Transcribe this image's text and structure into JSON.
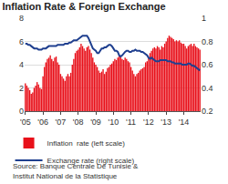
{
  "chart_data": {
    "type": "bar",
    "title": "Inflation Rate & Foreign Exchange",
    "annotations": [
      "Source: Banque Centrale De Tunisie &",
      "Institut National de la Statistique"
    ],
    "categories": [
      "'05",
      null,
      null,
      null,
      null,
      null,
      null,
      null,
      null,
      null,
      null,
      null,
      "'06",
      null,
      null,
      null,
      null,
      null,
      null,
      null,
      null,
      null,
      null,
      null,
      "'07",
      null,
      null,
      null,
      null,
      null,
      null,
      null,
      null,
      null,
      null,
      null,
      "'08",
      null,
      null,
      null,
      null,
      null,
      null,
      null,
      null,
      null,
      null,
      null,
      "'09",
      null,
      null,
      null,
      null,
      null,
      null,
      null,
      null,
      null,
      null,
      null,
      "'10",
      null,
      null,
      null,
      null,
      null,
      null,
      null,
      null,
      null,
      null,
      null,
      "'11",
      null,
      null,
      null,
      null,
      null,
      null,
      null,
      null,
      null,
      null,
      null,
      "'12",
      null,
      null,
      null,
      null,
      null,
      null,
      null,
      null,
      null,
      null,
      null,
      "'13",
      null,
      null,
      null,
      null,
      null,
      null,
      null,
      null,
      null,
      null,
      null,
      "'14",
      null,
      null,
      null,
      null,
      null,
      null,
      null,
      null,
      null,
      null,
      null
    ],
    "series": [
      {
        "name": "Inflation  rate (left scale)",
        "type": "bar",
        "color": "#e8101a",
        "values": [
          2.4,
          2.2,
          2.0,
          1.8,
          1.5,
          1.6,
          2.0,
          2.2,
          2.5,
          2.3,
          2.0,
          1.9,
          3.0,
          3.8,
          4.2,
          4.5,
          4.6,
          4.8,
          4.5,
          4.3,
          4.6,
          4.7,
          4.2,
          4.0,
          3.2,
          3.0,
          2.8,
          2.6,
          3.0,
          3.2,
          3.0,
          3.3,
          4.0,
          4.5,
          5.0,
          5.2,
          5.3,
          5.5,
          5.8,
          5.6,
          5.4,
          5.2,
          5.5,
          5.6,
          5.3,
          5.0,
          4.6,
          4.2,
          4.0,
          3.8,
          3.5,
          3.3,
          3.4,
          3.6,
          3.2,
          3.4,
          3.7,
          3.8,
          4.0,
          4.1,
          4.3,
          4.5,
          4.4,
          4.6,
          4.8,
          4.7,
          4.5,
          4.4,
          4.6,
          4.5,
          4.3,
          4.2,
          3.8,
          3.5,
          3.2,
          3.0,
          3.2,
          3.3,
          3.5,
          3.6,
          3.7,
          3.8,
          4.2,
          4.3,
          4.6,
          5.0,
          5.2,
          5.4,
          5.5,
          5.4,
          5.6,
          5.5,
          5.3,
          5.6,
          5.5,
          5.8,
          6.0,
          6.3,
          6.5,
          6.4,
          6.3,
          6.2,
          6.0,
          6.1,
          6.0,
          6.1,
          5.9,
          5.8,
          5.8,
          5.6,
          5.4,
          5.6,
          5.7,
          5.8,
          5.6,
          5.8,
          5.6,
          5.5,
          5.4,
          5.3
        ]
      },
      {
        "name": "Exchange rate (right scale)",
        "type": "line",
        "axis": "y2",
        "color": "#1f3f8f",
        "values": [
          0.78,
          0.78,
          0.77,
          0.77,
          0.76,
          0.75,
          0.74,
          0.74,
          0.74,
          0.73,
          0.73,
          0.73,
          0.74,
          0.74,
          0.74,
          0.75,
          0.76,
          0.76,
          0.76,
          0.76,
          0.76,
          0.76,
          0.77,
          0.77,
          0.77,
          0.77,
          0.77,
          0.78,
          0.78,
          0.78,
          0.79,
          0.79,
          0.8,
          0.81,
          0.81,
          0.81,
          0.82,
          0.83,
          0.84,
          0.85,
          0.85,
          0.85,
          0.85,
          0.83,
          0.8,
          0.77,
          0.74,
          0.73,
          0.72,
          0.7,
          0.7,
          0.72,
          0.74,
          0.74,
          0.75,
          0.75,
          0.76,
          0.77,
          0.77,
          0.76,
          0.74,
          0.72,
          0.72,
          0.71,
          0.68,
          0.67,
          0.68,
          0.7,
          0.71,
          0.72,
          0.72,
          0.71,
          0.71,
          0.72,
          0.72,
          0.73,
          0.72,
          0.72,
          0.72,
          0.71,
          0.71,
          0.7,
          0.69,
          0.68,
          0.66,
          0.65,
          0.66,
          0.65,
          0.64,
          0.63,
          0.63,
          0.63,
          0.64,
          0.64,
          0.64,
          0.64,
          0.64,
          0.63,
          0.63,
          0.63,
          0.62,
          0.62,
          0.61,
          0.61,
          0.61,
          0.61,
          0.61,
          0.6,
          0.6,
          0.6,
          0.6,
          0.61,
          0.61,
          0.6,
          0.59,
          0.59,
          0.58,
          0.57,
          0.56,
          0.55
        ]
      }
    ],
    "ylim": [
      0,
      8
    ],
    "yticks": [
      0,
      2,
      4,
      6,
      8
    ],
    "y2lim": [
      0.2,
      1
    ],
    "y2ticks": [
      0.2,
      0.4,
      0.6,
      0.8,
      1
    ],
    "grid": true,
    "legend": "bottom"
  }
}
